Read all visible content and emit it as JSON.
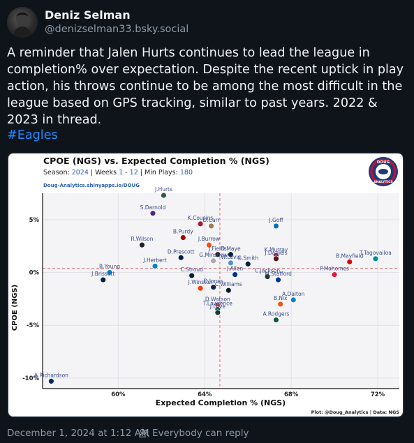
{
  "author": {
    "display_name": "Deniz Selman",
    "handle": "@denizselman33.bsky.social"
  },
  "post": {
    "text": "A reminder that Jalen Hurts continues to lead the league in completion% over expectation. Despite the recent uptick in play action, his throws continue to be among the most difficult in the league based on GPS tracking, similar to past years. 2022 & 2023 in thread.",
    "hashtag": "#Eagles",
    "timestamp": "December 1, 2024 at 1:12 AM",
    "reply_setting": "Everybody can reply"
  },
  "chart_data": {
    "type": "scatter",
    "title": "CPOE (NGS) vs. Expected Completion % (NGS)",
    "subtitle": {
      "season_label": "Season:",
      "season": "2024",
      "weeks_label": "| Weeks",
      "week_start": "1",
      "week_dash": "-",
      "week_end": "12",
      "min_plays_label": "| Min Plays:",
      "min_plays": "180"
    },
    "source_url": "Doug-Analytics.shinyapps.io/DOUG",
    "logo_text": [
      "DOUG",
      "ANALYTICS"
    ],
    "xlabel": "Expected Completion % (NGS)",
    "ylabel": "CPOE (NGS)",
    "xlim": [
      56.5,
      73.0
    ],
    "ylim": [
      -11.0,
      7.5
    ],
    "x_ticks": [
      60,
      64,
      68,
      72
    ],
    "x_tick_labels": [
      "60%",
      "64%",
      "68%",
      "72%"
    ],
    "y_ticks": [
      5,
      0,
      -5,
      -10
    ],
    "y_tick_labels": [
      "5%",
      "0%",
      "-5%",
      "-10%"
    ],
    "ref_x": 64.7,
    "ref_y": 0.4,
    "grid": true,
    "credit": "Plot: @Doug_Analytics | Data: NGS",
    "points": [
      {
        "label": "J.Hurts",
        "x": 62.1,
        "y": 7.3,
        "color": "#2a5a4a"
      },
      {
        "label": "S.Darnold",
        "x": 61.6,
        "y": 5.6,
        "color": "#4f2683"
      },
      {
        "label": "K.Cousins",
        "x": 63.8,
        "y": 4.6,
        "color": "#a71930"
      },
      {
        "label": "D.Carr",
        "x": 64.3,
        "y": 4.4,
        "color": "#9a7d50"
      },
      {
        "label": "J.Goff",
        "x": 67.3,
        "y": 4.4,
        "color": "#0076b6"
      },
      {
        "label": "B.Purdy",
        "x": 63.0,
        "y": 3.3,
        "color": "#aa0000"
      },
      {
        "label": "R.Wilson",
        "x": 61.1,
        "y": 2.6,
        "color": "#222222"
      },
      {
        "label": "J.Burrow",
        "x": 64.2,
        "y": 2.6,
        "color": "#fb4f14"
      },
      {
        "label": "D.Maye",
        "x": 65.2,
        "y": 1.7,
        "color": "#002244"
      },
      {
        "label": "J.Fields",
        "x": 64.6,
        "y": 1.7,
        "color": "#222222"
      },
      {
        "label": "K.Murray",
        "x": 67.3,
        "y": 1.6,
        "color": "#97233f"
      },
      {
        "label": "T.Tagovailoa",
        "x": 71.9,
        "y": 1.3,
        "color": "#008e97"
      },
      {
        "label": "D.Prescott",
        "x": 62.9,
        "y": 1.4,
        "color": "#041e42"
      },
      {
        "label": "J.Herbert",
        "x": 61.7,
        "y": 0.6,
        "color": "#0080c6"
      },
      {
        "label": "G.Minshew",
        "x": 64.4,
        "y": 1.1,
        "color": "#a5acaf"
      },
      {
        "label": "W.Levis",
        "x": 65.2,
        "y": 0.9,
        "color": "#4b92db"
      },
      {
        "label": "G.Smith",
        "x": 66.0,
        "y": 0.8,
        "color": "#002244"
      },
      {
        "label": "J.Daniels",
        "x": 67.3,
        "y": 1.3,
        "color": "#5a1414"
      },
      {
        "label": "B.Mayfield",
        "x": 70.7,
        "y": 1.0,
        "color": "#d50a0a"
      },
      {
        "label": "B.Young",
        "x": 59.6,
        "y": 0.0,
        "color": "#0085ca"
      },
      {
        "label": "P.Mahomes",
        "x": 70.0,
        "y": -0.2,
        "color": "#e31837"
      },
      {
        "label": "J.Allen",
        "x": 65.4,
        "y": -0.2,
        "color": "#00338d"
      },
      {
        "label": "C.Jackson",
        "x": 66.9,
        "y": -0.4,
        "color": "#203731"
      },
      {
        "label": "C.Stroud",
        "x": 63.4,
        "y": -0.3,
        "color": "#03202f"
      },
      {
        "label": "J.Brissett",
        "x": 59.3,
        "y": -0.7,
        "color": "#002244"
      },
      {
        "label": "D.Jones",
        "x": 64.4,
        "y": -1.4,
        "color": "#0b2265"
      },
      {
        "label": "M.Stafford",
        "x": 67.4,
        "y": -0.7,
        "color": "#003594"
      },
      {
        "label": "C.Williams",
        "x": 65.1,
        "y": -1.7,
        "color": "#0b162a"
      },
      {
        "label": "J.Winston",
        "x": 63.8,
        "y": -1.5,
        "color": "#ff3c00"
      },
      {
        "label": "A.Dalton",
        "x": 68.1,
        "y": -2.6,
        "color": "#0085ca"
      },
      {
        "label": "D.Watson",
        "x": 64.6,
        "y": -3.1,
        "color": "#ff3c00"
      },
      {
        "label": "B.Nix",
        "x": 67.5,
        "y": -3.0,
        "color": "#fb4f14"
      },
      {
        "label": "T.Lawrence",
        "x": 64.6,
        "y": -3.5,
        "color": "#006778"
      },
      {
        "label": "J.Love",
        "x": 64.6,
        "y": -3.8,
        "color": "#203731"
      },
      {
        "label": "A.Rodgers",
        "x": 67.3,
        "y": -4.5,
        "color": "#125740"
      },
      {
        "label": "A.Richardson",
        "x": 56.9,
        "y": -10.3,
        "color": "#002c5f"
      }
    ]
  },
  "colors": {
    "background": "#0f141a",
    "text_primary": "#f1f3f5",
    "text_muted": "#8d99a6",
    "link": "#208bfe",
    "chart_label": "#3a4a8c",
    "chart_reference": "#e0707a"
  }
}
